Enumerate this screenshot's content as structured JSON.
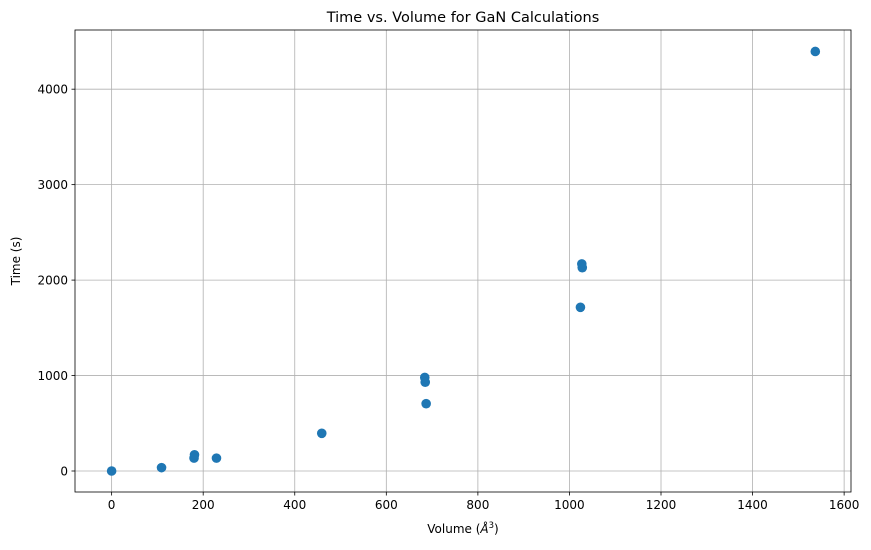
{
  "chart_data": {
    "type": "scatter",
    "title": "Time vs. Volume for GaN Calculations",
    "xlabel_prefix": "Volume (",
    "xlabel_unit_base": "Å",
    "xlabel_unit_exp": "3",
    "xlabel_suffix": ")",
    "ylabel": "Time (s)",
    "xlim": [
      -80,
      1615
    ],
    "ylim": [
      -220,
      4620
    ],
    "xticks": [
      0,
      200,
      400,
      600,
      800,
      1000,
      1200,
      1400,
      1600
    ],
    "yticks": [
      0,
      1000,
      2000,
      3000,
      4000
    ],
    "grid": true,
    "marker_color": "#1f77b4",
    "points": [
      {
        "x": 0,
        "y": 0
      },
      {
        "x": 109,
        "y": 35
      },
      {
        "x": 180,
        "y": 135
      },
      {
        "x": 181,
        "y": 170
      },
      {
        "x": 229,
        "y": 135
      },
      {
        "x": 459,
        "y": 395
      },
      {
        "x": 684,
        "y": 980
      },
      {
        "x": 685,
        "y": 930
      },
      {
        "x": 687,
        "y": 705
      },
      {
        "x": 1024,
        "y": 1715
      },
      {
        "x": 1027,
        "y": 2170
      },
      {
        "x": 1028,
        "y": 2130
      },
      {
        "x": 1537,
        "y": 4395
      }
    ]
  }
}
